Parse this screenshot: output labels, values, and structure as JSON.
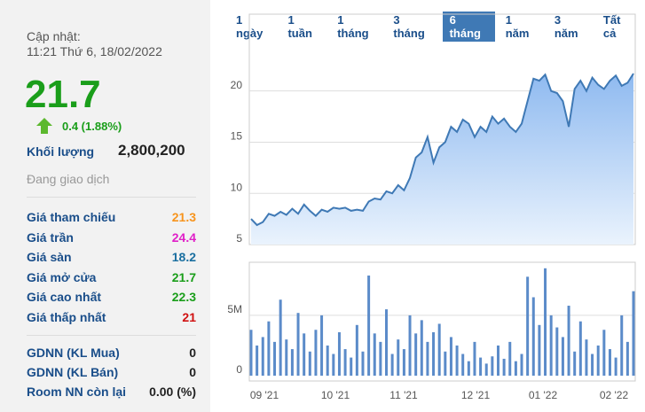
{
  "update_label": "Cập nhật:",
  "update_time": "11:21 Thứ 6, 18/02/2022",
  "price": "21.7",
  "price_color": "#1a9e1a",
  "change": "0.4 (1.88%)",
  "volume_label": "Khối lượng",
  "volume": "2,800,200",
  "status": "Đang giao dịch",
  "stats": [
    {
      "label": "Giá tham chiếu",
      "value": "21.3",
      "color": "#f7941d"
    },
    {
      "label": "Giá trần",
      "value": "24.4",
      "color": "#e020c8"
    },
    {
      "label": "Giá sàn",
      "value": "18.2",
      "color": "#1a6fa0"
    },
    {
      "label": "Giá mở cửa",
      "value": "21.7",
      "color": "#1a9e1a"
    },
    {
      "label": "Giá cao nhất",
      "value": "22.3",
      "color": "#1a9e1a"
    },
    {
      "label": "Giá thấp nhất",
      "value": "21",
      "color": "#d01010"
    }
  ],
  "foreign": [
    {
      "label": "GDNN (KL Mua)",
      "value": "0"
    },
    {
      "label": "GDNN (KL Bán)",
      "value": "0"
    },
    {
      "label": "Room NN còn lại",
      "value": "0.00 (%)"
    }
  ],
  "tabs": {
    "items": [
      "1 ngày",
      "1 tuần",
      "1 tháng",
      "3 tháng",
      "6 tháng",
      "1 năm",
      "3 năm",
      "Tất cả"
    ],
    "active": 4
  },
  "chart_data": [
    {
      "type": "area",
      "color": "#3f79b5",
      "ylim": [
        5,
        27.5
      ],
      "yticks": [
        5,
        10,
        15,
        20
      ],
      "grid": true,
      "values": [
        7.5,
        6.9,
        7.2,
        8.0,
        7.8,
        8.2,
        7.9,
        8.5,
        8.0,
        8.9,
        8.3,
        7.8,
        8.4,
        8.2,
        8.6,
        8.5,
        8.6,
        8.3,
        8.4,
        8.3,
        9.2,
        9.5,
        9.4,
        10.2,
        10.0,
        10.8,
        10.3,
        11.5,
        13.5,
        14.0,
        15.5,
        13.0,
        14.5,
        15.0,
        16.5,
        16.0,
        17.2,
        16.8,
        15.5,
        16.5,
        16.0,
        17.5,
        16.8,
        17.3,
        16.5,
        16.0,
        16.8,
        19.0,
        21.2,
        21.0,
        21.6,
        20.0,
        19.8,
        19.0,
        16.5,
        20.2,
        21.0,
        20.0,
        21.3,
        20.6,
        20.2,
        21.0,
        21.5,
        20.5,
        20.8,
        21.7
      ]
    },
    {
      "type": "bar",
      "color": "#5b8bc9",
      "ylim": [
        0,
        9400000
      ],
      "yticks": [
        0,
        {
          "value": 5000000,
          "label": "5M"
        }
      ],
      "grid": true,
      "xtick_labels": [
        "09 '21",
        "10 '21",
        "11 '21",
        "12 '21",
        "01 '22",
        "02 '22"
      ],
      "values": [
        3800000,
        2500000,
        3200000,
        4500000,
        2800000,
        6300000,
        3000000,
        2200000,
        5200000,
        3500000,
        2000000,
        3800000,
        5000000,
        2500000,
        1800000,
        3600000,
        2200000,
        1500000,
        4200000,
        2000000,
        8300000,
        3500000,
        2800000,
        5500000,
        1800000,
        3000000,
        2200000,
        5000000,
        3500000,
        4600000,
        2800000,
        3600000,
        4300000,
        2000000,
        3200000,
        2500000,
        1800000,
        1200000,
        2800000,
        1500000,
        1000000,
        1600000,
        2500000,
        1400000,
        2800000,
        1200000,
        1800000,
        8200000,
        6500000,
        4200000,
        8900000,
        5000000,
        4000000,
        3200000,
        5800000,
        2000000,
        4500000,
        3000000,
        1800000,
        2500000,
        3800000,
        2200000,
        1500000,
        5000000,
        2800000,
        7000000
      ]
    }
  ]
}
